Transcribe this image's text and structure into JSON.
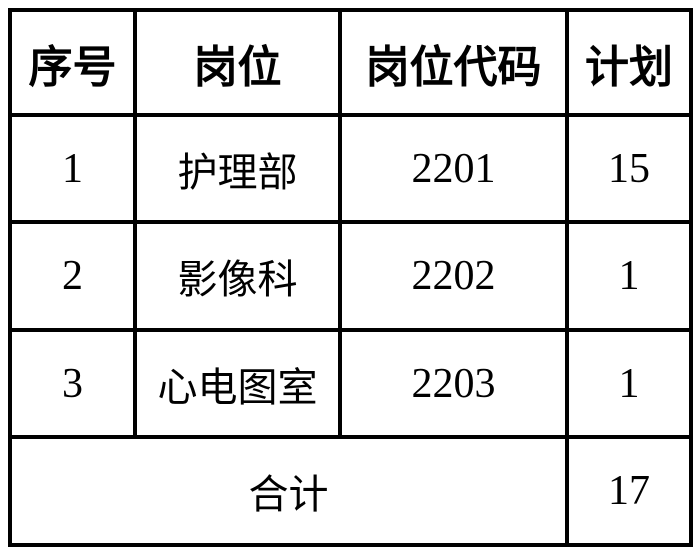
{
  "headers": [
    "序号",
    "岗位",
    "岗位代码",
    "计划"
  ],
  "rows": [
    {
      "no": "1",
      "post": "护理部",
      "code": "2201",
      "plan": "15"
    },
    {
      "no": "2",
      "post": "影像科",
      "code": "2202",
      "plan": "1"
    },
    {
      "no": "3",
      "post": "心电图室",
      "code": "2203",
      "plan": "1"
    }
  ],
  "total": {
    "label": "合计",
    "plan": "17"
  }
}
